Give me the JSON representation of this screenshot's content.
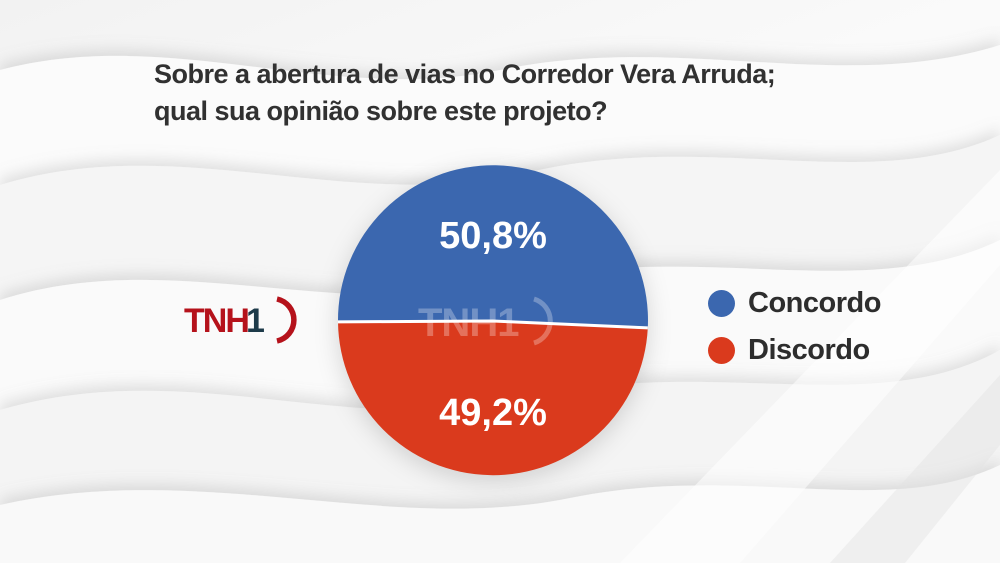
{
  "question": {
    "line1": "Sobre a abertura de vias no Corredor Vera Arruda;",
    "line2": "qual sua opinião sobre este projeto?"
  },
  "logo": {
    "brand": "TNH",
    "number": "1",
    "brand_color": "#b5121b",
    "number_color": "#1d3a49"
  },
  "watermark": {
    "brand": "TNH1"
  },
  "chart_data": {
    "type": "pie",
    "title": "Sobre a abertura de vias no Corredor Vera Arruda; qual sua opinião sobre este projeto?",
    "categories": [
      "Concordo",
      "Discordo"
    ],
    "values": [
      50.8,
      49.2
    ],
    "value_labels": [
      "50,8%",
      "49,2%"
    ],
    "colors": [
      "#3b67af",
      "#da3a1d"
    ],
    "slice_label_color": "#ffffff",
    "divider_color": "#ffffff",
    "legend_position": "right",
    "labels_inside": true
  }
}
